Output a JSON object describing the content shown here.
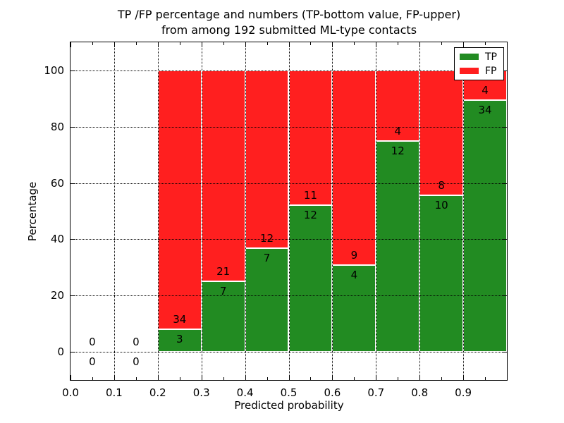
{
  "chart_data": {
    "type": "bar",
    "stacked": true,
    "title_line1": "TP /FP percentage and numbers (TP-bottom value, FP-upper)",
    "title_line2": "from among 192 submitted ML-type contacts",
    "xlabel": "Predicted probability",
    "ylabel": "Percentage",
    "total_contacts": 192,
    "xlim": [
      0.0,
      1.0
    ],
    "ylim": [
      -10,
      110
    ],
    "xticks": [
      "0.0",
      "0.1",
      "0.2",
      "0.3",
      "0.4",
      "0.5",
      "0.6",
      "0.7",
      "0.8",
      "0.9"
    ],
    "yticks": [
      "0",
      "20",
      "40",
      "60",
      "80",
      "100"
    ],
    "grid": true,
    "grid_style": "dotted",
    "colors": {
      "tp": "#228b22",
      "fp": "#ff1f1f",
      "bar_edge": "#ffffff"
    },
    "legend": {
      "position": "upper right",
      "entries": [
        {
          "label": "TP",
          "color": "#228b22"
        },
        {
          "label": "FP",
          "color": "#ff1f1f"
        }
      ]
    },
    "bins": [
      {
        "range": [
          0.0,
          0.1
        ],
        "tp": 0,
        "fp": 0
      },
      {
        "range": [
          0.1,
          0.2
        ],
        "tp": 0,
        "fp": 0
      },
      {
        "range": [
          0.2,
          0.3
        ],
        "tp": 3,
        "fp": 34
      },
      {
        "range": [
          0.3,
          0.4
        ],
        "tp": 7,
        "fp": 21
      },
      {
        "range": [
          0.4,
          0.5
        ],
        "tp": 7,
        "fp": 12
      },
      {
        "range": [
          0.5,
          0.6
        ],
        "tp": 12,
        "fp": 11
      },
      {
        "range": [
          0.6,
          0.7
        ],
        "tp": 4,
        "fp": 9
      },
      {
        "range": [
          0.7,
          0.8
        ],
        "tp": 12,
        "fp": 4
      },
      {
        "range": [
          0.8,
          0.9
        ],
        "tp": 10,
        "fp": 8
      },
      {
        "range": [
          0.9,
          1.0
        ],
        "tp": 34,
        "fp": 4
      }
    ]
  }
}
